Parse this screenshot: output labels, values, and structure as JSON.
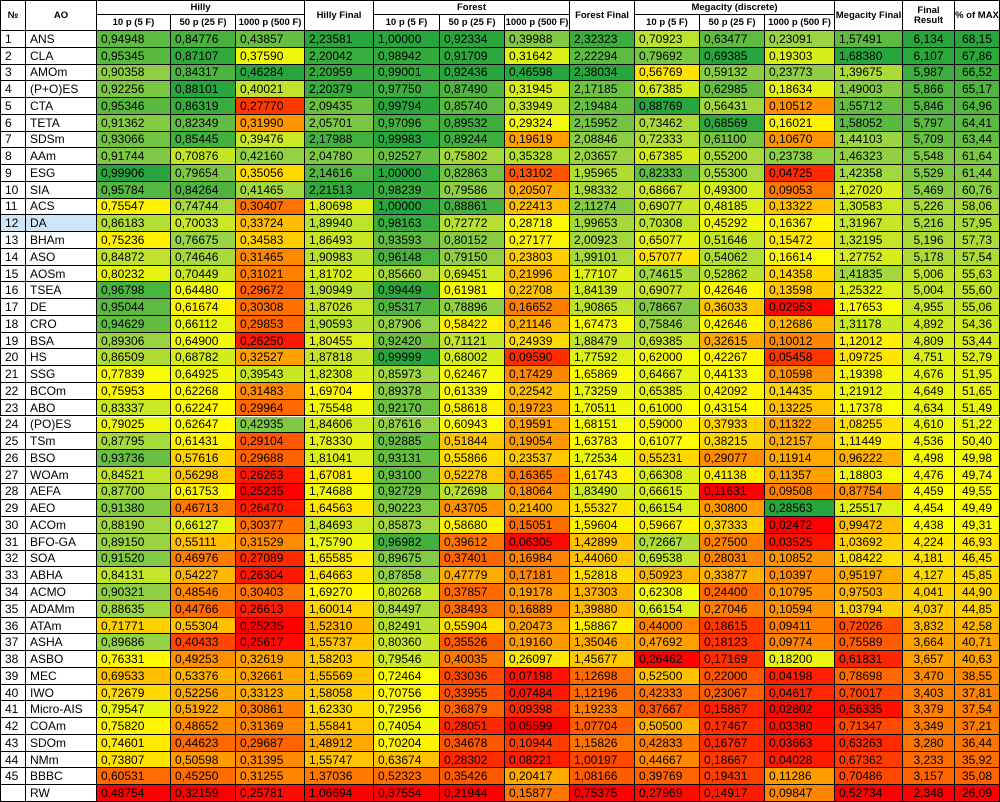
{
  "table": {
    "header": {
      "number": "№",
      "name": "AO",
      "groups": [
        {
          "title": "Hilly",
          "subheaders": [
            "10 p (5 F)",
            "50 p (25 F)",
            "1000 p (500 F)"
          ],
          "final": "Hilly Final"
        },
        {
          "title": "Forest",
          "subheaders": [
            "10 p (5 F)",
            "50 p (25 F)",
            "1000 p (500 F)"
          ],
          "final": "Forest Final"
        },
        {
          "title": "Megacity (discrete)",
          "subheaders": [
            "10 p (5 F)",
            "50 p (25 F)",
            "1000 p (500 F)"
          ],
          "final": "Megacity Final"
        }
      ],
      "final_result": "Final Result",
      "percent": "% of MAX"
    },
    "highlighted_row_index": 11,
    "rows": [
      [
        1,
        "ANS",
        "0,94948",
        "0,84776",
        "0,43857",
        "2,23581",
        "1,00000",
        "0,92334",
        "0,39988",
        "2,32323",
        "0,70923",
        "0,63477",
        "0,23091",
        "1,57491",
        "6,134",
        "68,15"
      ],
      [
        2,
        "CLA",
        "0,95345",
        "0,87107",
        "0,37590",
        "2,20042",
        "0,98942",
        "0,91709",
        "0,31642",
        "2,22294",
        "0,79692",
        "0,69385",
        "0,19303",
        "1,68380",
        "6,107",
        "67,86"
      ],
      [
        3,
        "AMOm",
        "0,90358",
        "0,84317",
        "0,46284",
        "2,20959",
        "0,99001",
        "0,92436",
        "0,46598",
        "2,38034",
        "0,56769",
        "0,59132",
        "0,23773",
        "1,39675",
        "5,987",
        "66,52"
      ],
      [
        4,
        "(P+O)ES",
        "0,92256",
        "0,88101",
        "0,40021",
        "2,20379",
        "0,97750",
        "0,87490",
        "0,31945",
        "2,17185",
        "0,67385",
        "0,62985",
        "0,18634",
        "1,49003",
        "5,866",
        "65,17"
      ],
      [
        5,
        "CTA",
        "0,95346",
        "0,86319",
        "0,27770",
        "2,09435",
        "0,99794",
        "0,85740",
        "0,33949",
        "2,19484",
        "0,88769",
        "0,56431",
        "0,10512",
        "1,55712",
        "5,846",
        "64,96"
      ],
      [
        6,
        "TETA",
        "0,91362",
        "0,82349",
        "0,31990",
        "2,05701",
        "0,97096",
        "0,89532",
        "0,29324",
        "2,15952",
        "0,73462",
        "0,68569",
        "0,16021",
        "1,58052",
        "5,797",
        "64,41"
      ],
      [
        7,
        "SDSm",
        "0,93066",
        "0,85445",
        "0,39476",
        "2,17988",
        "0,99983",
        "0,89244",
        "0,19619",
        "2,08846",
        "0,72333",
        "0,61100",
        "0,10670",
        "1,44103",
        "5,709",
        "63,44"
      ],
      [
        8,
        "AAm",
        "0,91744",
        "0,70876",
        "0,42160",
        "2,04780",
        "0,92527",
        "0,75802",
        "0,35328",
        "2,03657",
        "0,67385",
        "0,55200",
        "0,23738",
        "1,46323",
        "5,548",
        "61,64"
      ],
      [
        9,
        "ESG",
        "0,99906",
        "0,79654",
        "0,35056",
        "2,14616",
        "1,00000",
        "0,82863",
        "0,13102",
        "1,95965",
        "0,82333",
        "0,55300",
        "0,04725",
        "1,42358",
        "5,529",
        "61,44"
      ],
      [
        10,
        "SIA",
        "0,95784",
        "0,84264",
        "0,41465",
        "2,21513",
        "0,98239",
        "0,79586",
        "0,20507",
        "1,98332",
        "0,68667",
        "0,49300",
        "0,09053",
        "1,27020",
        "5,469",
        "60,76"
      ],
      [
        11,
        "ACS",
        "0,75547",
        "0,74744",
        "0,30407",
        "1,80698",
        "1,00000",
        "0,88861",
        "0,22413",
        "2,11274",
        "0,69077",
        "0,48185",
        "0,13322",
        "1,30583",
        "5,226",
        "58,06"
      ],
      [
        12,
        "DA",
        "0,86183",
        "0,70033",
        "0,33724",
        "1,89940",
        "0,98163",
        "0,72772",
        "0,28718",
        "1,99653",
        "0,70308",
        "0,45292",
        "0,16367",
        "1,31967",
        "5,216",
        "57,95"
      ],
      [
        13,
        "BHAm",
        "0,75236",
        "0,76675",
        "0,34583",
        "1,86493",
        "0,93593",
        "0,80152",
        "0,27177",
        "2,00923",
        "0,65077",
        "0,51646",
        "0,15472",
        "1,32195",
        "5,196",
        "57,73"
      ],
      [
        14,
        "ASO",
        "0,84872",
        "0,74646",
        "0,31465",
        "1,90983",
        "0,96148",
        "0,79150",
        "0,23803",
        "1,99101",
        "0,57077",
        "0,54062",
        "0,16614",
        "1,27752",
        "5,178",
        "57,54"
      ],
      [
        15,
        "AOSm",
        "0,80232",
        "0,70449",
        "0,31021",
        "1,81702",
        "0,85660",
        "0,69451",
        "0,21996",
        "1,77107",
        "0,74615",
        "0,52862",
        "0,14358",
        "1,41835",
        "5,006",
        "55,63"
      ],
      [
        16,
        "TSEA",
        "0,96798",
        "0,64480",
        "0,29672",
        "1,90949",
        "0,99449",
        "0,61981",
        "0,22708",
        "1,84139",
        "0,69077",
        "0,42646",
        "0,13598",
        "1,25322",
        "5,004",
        "55,60"
      ],
      [
        17,
        "DE",
        "0,95044",
        "0,61674",
        "0,30308",
        "1,87026",
        "0,95317",
        "0,78896",
        "0,16652",
        "1,90865",
        "0,78667",
        "0,36033",
        "0,02953",
        "1,17653",
        "4,955",
        "55,06"
      ],
      [
        18,
        "CRO",
        "0,94629",
        "0,66112",
        "0,29853",
        "1,90593",
        "0,87906",
        "0,58422",
        "0,21146",
        "1,67473",
        "0,75846",
        "0,42646",
        "0,12686",
        "1,31178",
        "4,892",
        "54,36"
      ],
      [
        19,
        "BSA",
        "0,89306",
        "0,64900",
        "0,26250",
        "1,80455",
        "0,92420",
        "0,71121",
        "0,24939",
        "1,88479",
        "0,69385",
        "0,32615",
        "0,10012",
        "1,12012",
        "4,809",
        "53,44"
      ],
      [
        20,
        "HS",
        "0,86509",
        "0,68782",
        "0,32527",
        "1,87818",
        "0,99999",
        "0,68002",
        "0,09590",
        "1,77592",
        "0,62000",
        "0,42267",
        "0,05458",
        "1,09725",
        "4,751",
        "52,79"
      ],
      [
        21,
        "SSG",
        "0,77839",
        "0,64925",
        "0,39543",
        "1,82308",
        "0,85973",
        "0,62467",
        "0,17429",
        "1,65869",
        "0,64667",
        "0,44133",
        "0,10598",
        "1,19398",
        "4,676",
        "51,95"
      ],
      [
        22,
        "BCOm",
        "0,75953",
        "0,62268",
        "0,31483",
        "1,69704",
        "0,89378",
        "0,61339",
        "0,22542",
        "1,73259",
        "0,65385",
        "0,42092",
        "0,14435",
        "1,21912",
        "4,649",
        "51,65"
      ],
      [
        23,
        "ABO",
        "0,83337",
        "0,62247",
        "0,29964",
        "1,75548",
        "0,92170",
        "0,58618",
        "0,19723",
        "1,70511",
        "0,61000",
        "0,43154",
        "0,13225",
        "1,17378",
        "4,634",
        "51,49"
      ],
      [
        24,
        "(PO)ES",
        "0,79025",
        "0,62647",
        "0,42935",
        "1,84606",
        "0,87616",
        "0,60943",
        "0,19591",
        "1,68151",
        "0,59000",
        "0,37933",
        "0,11322",
        "1,08255",
        "4,610",
        "51,22"
      ],
      [
        25,
        "TSm",
        "0,87795",
        "0,61431",
        "0,29104",
        "1,78330",
        "0,92885",
        "0,51844",
        "0,19054",
        "1,63783",
        "0,61077",
        "0,38215",
        "0,12157",
        "1,11449",
        "4,536",
        "50,40"
      ],
      [
        26,
        "BSO",
        "0,93736",
        "0,57616",
        "0,29688",
        "1,81041",
        "0,93131",
        "0,55866",
        "0,23537",
        "1,72534",
        "0,55231",
        "0,29077",
        "0,11914",
        "0,96222",
        "4,498",
        "49,98"
      ],
      [
        27,
        "WOAm",
        "0,84521",
        "0,56298",
        "0,26263",
        "1,67081",
        "0,93100",
        "0,52278",
        "0,16365",
        "1,61743",
        "0,66308",
        "0,41138",
        "0,11357",
        "1,18803",
        "4,476",
        "49,74"
      ],
      [
        28,
        "AEFA",
        "0,87700",
        "0,61753",
        "0,25235",
        "1,74688",
        "0,92729",
        "0,72698",
        "0,18064",
        "1,83490",
        "0,66615",
        "0,11631",
        "0,09508",
        "0,87754",
        "4,459",
        "49,55"
      ],
      [
        29,
        "AEO",
        "0,91380",
        "0,46713",
        "0,26470",
        "1,64563",
        "0,90223",
        "0,43705",
        "0,21400",
        "1,55327",
        "0,66154",
        "0,30800",
        "0,28563",
        "1,25517",
        "4,454",
        "49,49"
      ],
      [
        30,
        "ACOm",
        "0,88190",
        "0,66127",
        "0,30377",
        "1,84693",
        "0,85873",
        "0,58680",
        "0,15051",
        "1,59604",
        "0,59667",
        "0,37333",
        "0,02472",
        "0,99472",
        "4,438",
        "49,31"
      ],
      [
        31,
        "BFO-GA",
        "0,89150",
        "0,55111",
        "0,31529",
        "1,75790",
        "0,96982",
        "0,39612",
        "0,06305",
        "1,42899",
        "0,72667",
        "0,27500",
        "0,03525",
        "1,03692",
        "4,224",
        "46,93"
      ],
      [
        32,
        "SOA",
        "0,91520",
        "0,46976",
        "0,27089",
        "1,65585",
        "0,89675",
        "0,37401",
        "0,16984",
        "1,44060",
        "0,69538",
        "0,28031",
        "0,10852",
        "1,08422",
        "4,181",
        "46,45"
      ],
      [
        33,
        "ABHA",
        "0,84131",
        "0,54227",
        "0,26304",
        "1,64663",
        "0,87858",
        "0,47779",
        "0,17181",
        "1,52818",
        "0,50923",
        "0,33877",
        "0,10397",
        "0,95197",
        "4,127",
        "45,85"
      ],
      [
        34,
        "ACMO",
        "0,90321",
        "0,48546",
        "0,30403",
        "1,69270",
        "0,80268",
        "0,37857",
        "0,19178",
        "1,37303",
        "0,62308",
        "0,24400",
        "0,10795",
        "0,97503",
        "4,041",
        "44,90"
      ],
      [
        35,
        "ADAMm",
        "0,88635",
        "0,44766",
        "0,26613",
        "1,60014",
        "0,84497",
        "0,38493",
        "0,16889",
        "1,39880",
        "0,66154",
        "0,27046",
        "0,10594",
        "1,03794",
        "4,037",
        "44,85"
      ],
      [
        36,
        "ATAm",
        "0,71771",
        "0,55304",
        "0,25235",
        "1,52310",
        "0,82491",
        "0,55904",
        "0,20473",
        "1,58867",
        "0,44000",
        "0,18615",
        "0,09411",
        "0,72026",
        "3,832",
        "42,58"
      ],
      [
        37,
        "ASHA",
        "0,89686",
        "0,40433",
        "0,25617",
        "1,55737",
        "0,80360",
        "0,35526",
        "0,19160",
        "1,35046",
        "0,47692",
        "0,18123",
        "0,09774",
        "0,75589",
        "3,664",
        "40,71"
      ],
      [
        38,
        "ASBO",
        "0,76331",
        "0,49253",
        "0,32619",
        "1,58203",
        "0,79546",
        "0,40035",
        "0,26097",
        "1,45677",
        "0,26462",
        "0,17169",
        "0,18200",
        "0,61831",
        "3,657",
        "40,63"
      ],
      [
        39,
        "MEC",
        "0,69533",
        "0,53376",
        "0,32661",
        "1,55569",
        "0,72464",
        "0,33036",
        "0,07198",
        "1,12698",
        "0,52500",
        "0,22000",
        "0,04198",
        "0,78698",
        "3,470",
        "38,55"
      ],
      [
        40,
        "IWO",
        "0,72679",
        "0,52256",
        "0,33123",
        "1,58058",
        "0,70756",
        "0,33955",
        "0,07484",
        "1,12196",
        "0,42333",
        "0,23067",
        "0,04617",
        "0,70017",
        "3,403",
        "37,81"
      ],
      [
        41,
        "Micro-AIS",
        "0,79547",
        "0,51922",
        "0,30861",
        "1,62330",
        "0,72956",
        "0,36879",
        "0,09398",
        "1,19233",
        "0,37667",
        "0,15867",
        "0,02802",
        "0,56335",
        "3,379",
        "37,54"
      ],
      [
        42,
        "COAm",
        "0,75820",
        "0,48652",
        "0,31369",
        "1,55841",
        "0,74054",
        "0,28051",
        "0,05599",
        "1,07704",
        "0,50500",
        "0,17467",
        "0,03380",
        "0,71347",
        "3,349",
        "37,21"
      ],
      [
        43,
        "SDOm",
        "0,74601",
        "0,44623",
        "0,29687",
        "1,48912",
        "0,70204",
        "0,34678",
        "0,10944",
        "1,15826",
        "0,42833",
        "0,16767",
        "0,03663",
        "0,63263",
        "3,280",
        "36,44"
      ],
      [
        44,
        "NMm",
        "0,73807",
        "0,50598",
        "0,31395",
        "1,55747",
        "0,63674",
        "0,28302",
        "0,08221",
        "1,00197",
        "0,44667",
        "0,18667",
        "0,04028",
        "0,67362",
        "3,233",
        "35,92"
      ],
      [
        45,
        "BBBC",
        "0,60531",
        "0,45250",
        "0,31255",
        "1,37036",
        "0,52323",
        "0,35426",
        "0,20417",
        "1,08166",
        "0,39769",
        "0,19431",
        "0,11286",
        "0,70486",
        "3,157",
        "35,08"
      ],
      [
        null,
        "RW",
        "0,48754",
        "0,32159",
        "0,25781",
        "1,06694",
        "0,37554",
        "0,21944",
        "0,15877",
        "0,75375",
        "0,27969",
        "0,14917",
        "0,09847",
        "0,52734",
        "2,348",
        "26,09"
      ]
    ]
  }
}
